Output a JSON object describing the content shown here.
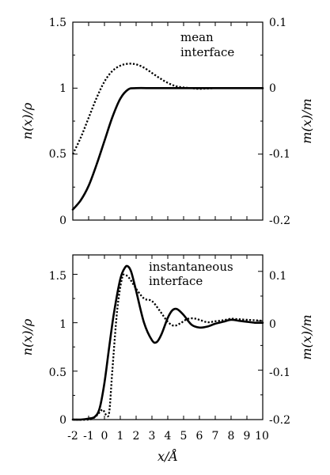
{
  "chart_data": [
    {
      "type": "line",
      "annotation": [
        "mean",
        "interface"
      ],
      "ylabel_left": "n(x)/ρ",
      "ylabel_right": "m(x)/m",
      "xlim": [
        -2,
        10
      ],
      "ylim_left": [
        0,
        1.5
      ],
      "ylim_right": [
        -0.2,
        0.1
      ],
      "y_ticks_left": [
        "0",
        "0.5",
        "1",
        "1.5"
      ],
      "y_ticks_right": [
        "-0.2",
        "-0.1",
        "0",
        "0.1"
      ],
      "series": [
        {
          "style": "solid",
          "axis": "left",
          "x": [
            -2,
            -1.5,
            -1,
            -0.5,
            0,
            0.5,
            1,
            1.5,
            2,
            3,
            4,
            5,
            6,
            7,
            8,
            9,
            10
          ],
          "y": [
            0.08,
            0.15,
            0.26,
            0.42,
            0.6,
            0.78,
            0.92,
            0.99,
            1.0,
            1.0,
            1.0,
            1.0,
            1.0,
            1.0,
            1.0,
            1.0,
            1.0
          ]
        },
        {
          "style": "dotted",
          "axis": "right",
          "x": [
            -2,
            -1.5,
            -1,
            -0.5,
            0,
            0.5,
            1,
            1.5,
            2,
            2.5,
            3,
            3.5,
            4,
            4.5,
            5,
            5.5,
            6,
            7,
            8,
            9,
            10
          ],
          "y": [
            -0.1,
            -0.075,
            -0.045,
            -0.015,
            0.01,
            0.026,
            0.034,
            0.037,
            0.036,
            0.031,
            0.023,
            0.015,
            0.008,
            0.003,
            0.001,
            0.0,
            -0.001,
            0.0,
            0.0,
            0.0,
            0.0
          ]
        }
      ]
    },
    {
      "type": "line",
      "annotation": [
        "instantaneous",
        "interface"
      ],
      "xlabel": "x/Å",
      "ylabel_left": "n(x)/ρ",
      "ylabel_right": "m(x)/m",
      "xlim": [
        -2,
        10
      ],
      "ylim_left": [
        0,
        1.7
      ],
      "ylim_right": [
        -0.2,
        0.1333
      ],
      "x_ticks": [
        "-2",
        "-1",
        "0",
        "1",
        "2",
        "3",
        "4",
        "5",
        "6",
        "7",
        "8",
        "9",
        "10"
      ],
      "y_ticks_left": [
        "0",
        "0.5",
        "1",
        "1.5"
      ],
      "y_ticks_right": [
        "-0.2",
        "-0.1",
        "0",
        "0.1"
      ],
      "series": [
        {
          "style": "solid",
          "axis": "left",
          "x": [
            -2,
            -1.5,
            -1,
            -0.6,
            -0.3,
            0,
            0.3,
            0.6,
            1,
            1.3,
            1.5,
            1.7,
            2,
            2.5,
            3,
            3.3,
            3.6,
            4,
            4.3,
            4.6,
            5,
            5.5,
            6,
            6.5,
            7,
            7.5,
            8,
            8.5,
            9,
            9.5,
            10
          ],
          "y": [
            0.0,
            0.0,
            0.01,
            0.03,
            0.12,
            0.38,
            0.75,
            1.1,
            1.45,
            1.57,
            1.58,
            1.52,
            1.33,
            1.0,
            0.82,
            0.8,
            0.88,
            1.05,
            1.13,
            1.14,
            1.08,
            0.98,
            0.95,
            0.96,
            0.99,
            1.01,
            1.03,
            1.02,
            1.01,
            1.0,
            1.0
          ]
        },
        {
          "style": "dotted",
          "axis": "right",
          "x": [
            -2,
            -1,
            -0.6,
            -0.3,
            -0.1,
            0.1,
            0.3,
            0.5,
            0.8,
            1.1,
            1.3,
            1.6,
            2,
            2.5,
            3,
            3.5,
            4,
            4.4,
            4.8,
            5.2,
            5.6,
            6,
            6.5,
            7,
            7.5,
            8,
            8.5,
            9,
            9.5,
            10
          ],
          "y": [
            -0.2,
            -0.2,
            -0.195,
            -0.185,
            -0.18,
            -0.19,
            -0.185,
            -0.1,
            0.02,
            0.085,
            0.093,
            0.085,
            0.065,
            0.045,
            0.04,
            0.02,
            -0.002,
            -0.01,
            -0.005,
            0.003,
            0.005,
            0.002,
            -0.003,
            -0.001,
            0.001,
            0.004,
            0.003,
            0.002,
            0.001,
            0.0
          ]
        }
      ]
    }
  ]
}
